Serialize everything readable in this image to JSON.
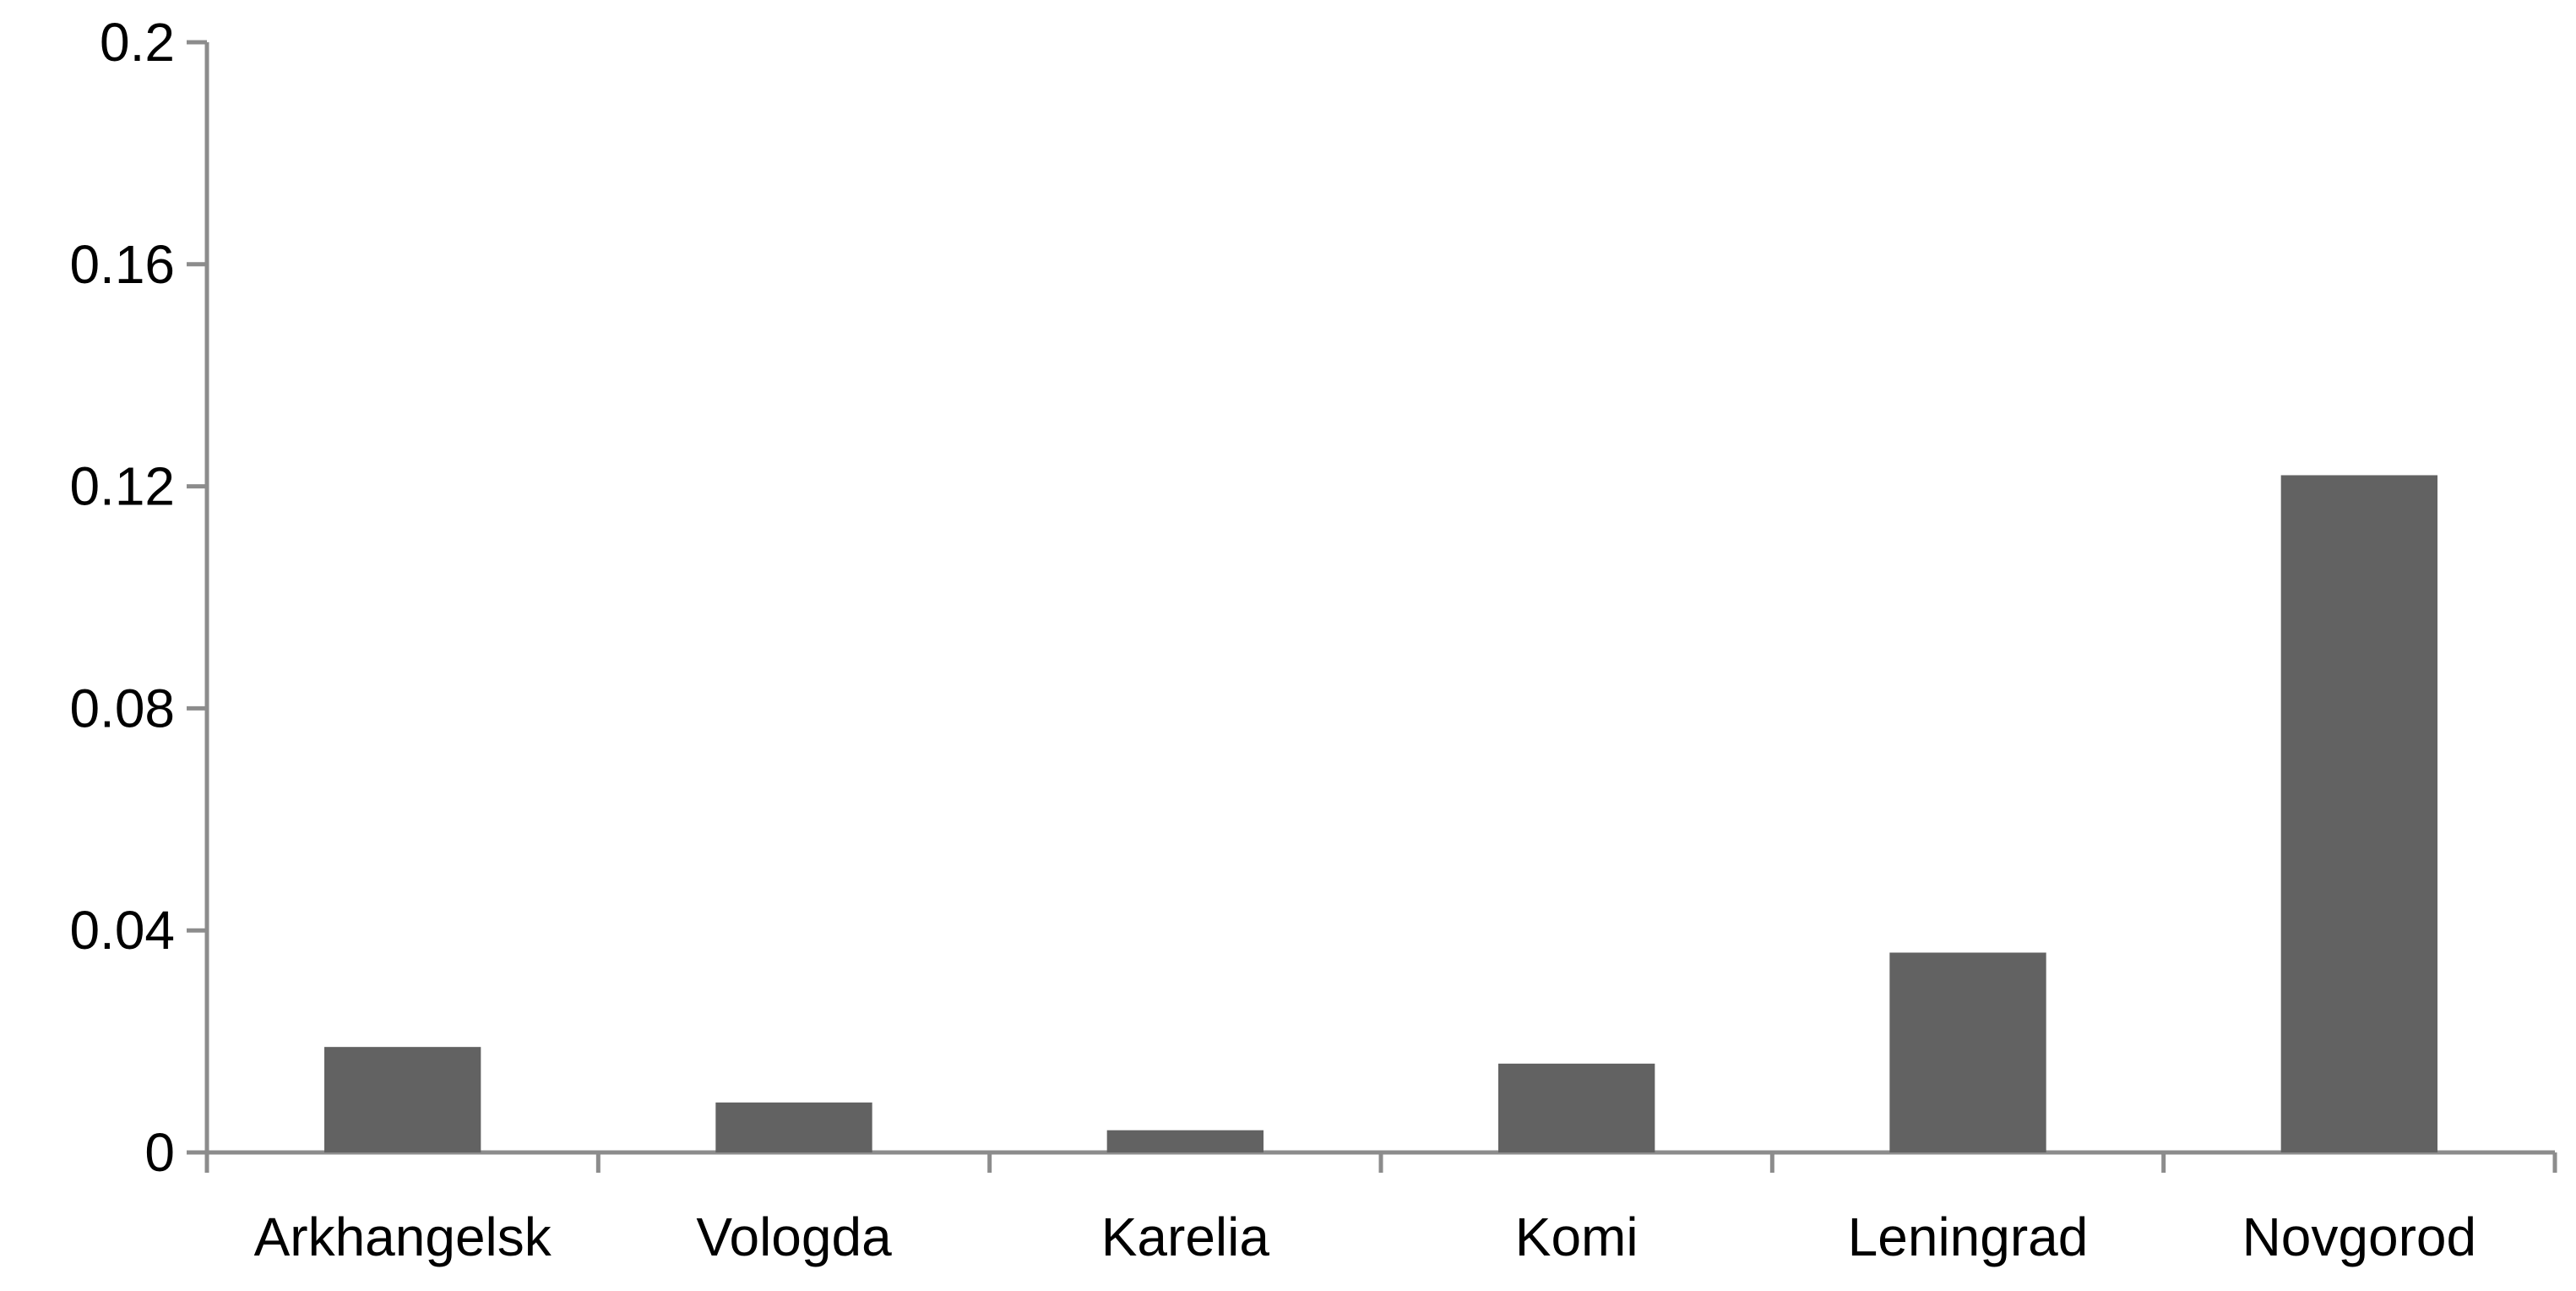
{
  "chart_data": {
    "type": "bar",
    "title": "",
    "xlabel": "",
    "ylabel": "",
    "categories": [
      "Arkhangelsk",
      "Vologda",
      "Karelia",
      "Komi",
      "Leningrad",
      "Novgorod"
    ],
    "values": [
      0.019,
      0.009,
      0.004,
      0.016,
      0.036,
      0.122
    ],
    "ylim": [
      0,
      0.2
    ],
    "yticks": [
      "0",
      "0.04",
      "0.08",
      "0.12",
      "0.16",
      "0.2"
    ],
    "grid": false,
    "legend": "none",
    "bar_color": "#626262",
    "axis_color": "#8c8c8c"
  }
}
